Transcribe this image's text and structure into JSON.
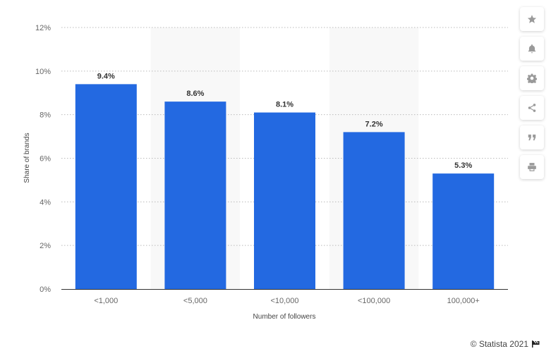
{
  "chart_data": {
    "type": "bar",
    "categories": [
      "<1,000",
      "<5,000",
      "<10,000",
      "<100,000",
      "100,000+"
    ],
    "values": [
      9.4,
      8.6,
      8.1,
      7.2,
      5.3
    ],
    "value_labels": [
      "9.4%",
      "8.6%",
      "8.1%",
      "7.2%",
      "5.3%"
    ],
    "xlabel": "Number of followers",
    "ylabel": "Share of brands",
    "ylim": [
      0,
      12
    ],
    "yticks": [
      0,
      2,
      4,
      6,
      8,
      10,
      12
    ],
    "ytick_labels": [
      "0%",
      "2%",
      "4%",
      "6%",
      "8%",
      "10%",
      "12%"
    ],
    "grid": true,
    "bar_color": "#2369e1",
    "alt_band_color": "#f8f8f8"
  },
  "toolbar": {
    "icons": [
      "star-icon",
      "bell-icon",
      "gear-icon",
      "share-icon",
      "quote-icon",
      "print-icon"
    ]
  },
  "footer": {
    "copyright": "© Statista 2021"
  }
}
